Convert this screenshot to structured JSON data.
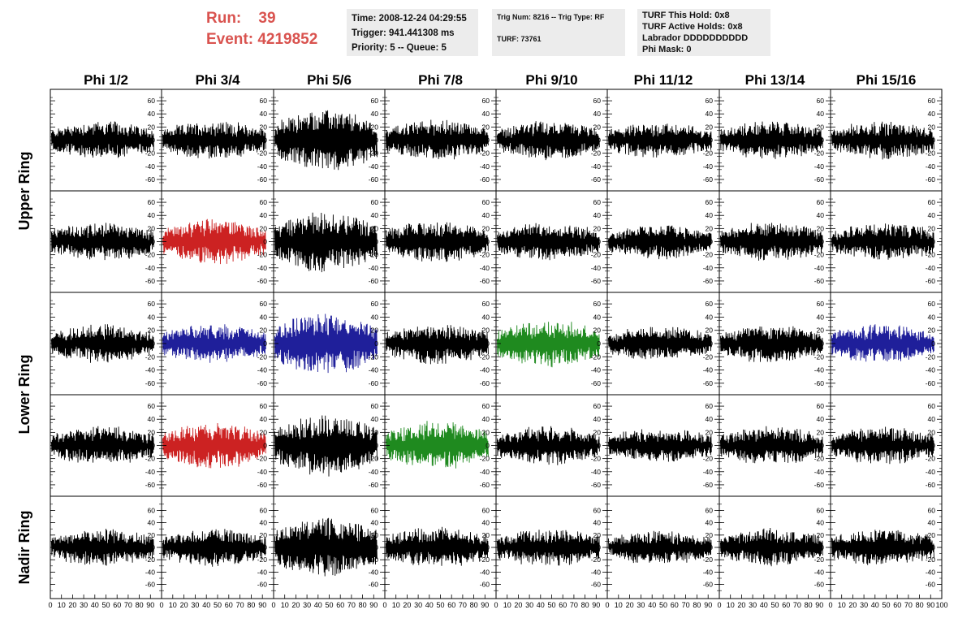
{
  "header": {
    "run_line": "Run:    39",
    "event_line": "Event: 4219852",
    "box1": [
      "Time: 2008-12-24 04:29:55",
      "Trigger: 941.441308 ms",
      "Priority: 5 -- Queue: 5"
    ],
    "box2": [
      "Trig Num: 8216 -- Trig Type: RF",
      "TURF: 73761"
    ],
    "box3": [
      "TURF This Hold: 0x8",
      "TURF Active Holds: 0x8",
      "Labrador DDDDDDDDDD",
      "Phi Mask: 0"
    ],
    "colors": {
      "run_text": "#d9534f",
      "box_bg": "#ececec"
    }
  },
  "chart_data": {
    "type": "line",
    "columns": [
      "Phi 1/2",
      "Phi 3/4",
      "Phi 5/6",
      "Phi 7/8",
      "Phi 9/10",
      "Phi 11/12",
      "Phi 13/14",
      "Phi 15/16"
    ],
    "ring_labels": [
      "Upper Ring",
      "Lower Ring",
      "Nadir Ring"
    ],
    "rows": 5,
    "xlim": [
      0,
      100
    ],
    "x_ticks": [
      0,
      10,
      20,
      30,
      40,
      50,
      60,
      70,
      80,
      90,
      100
    ],
    "x_tick_labels_bottom": [
      "0",
      "10",
      "20",
      "30",
      "40",
      "50",
      "60",
      "70",
      "80",
      "90",
      "100"
    ],
    "ylim_rows_1_4": [
      -70,
      70
    ],
    "ylim_row_5": [
      -75,
      75
    ],
    "y_tick_labels_rows_1_4": [
      "60",
      "40",
      "20",
      "0",
      "-20",
      "-40",
      "-60"
    ],
    "y_tick_labels_row_5": [
      "60",
      "40",
      "20",
      "0",
      "-20",
      "-40",
      "-60"
    ],
    "trace_colors": {
      "default": "#000000",
      "red": "#cc2222",
      "blue": "#1f1f9a",
      "green": "#1f8a1f"
    },
    "colored_panels": [
      {
        "row": 2,
        "col": 2,
        "color": "red"
      },
      {
        "row": 3,
        "col": 2,
        "color": "blue"
      },
      {
        "row": 3,
        "col": 3,
        "color": "blue"
      },
      {
        "row": 3,
        "col": 5,
        "color": "green"
      },
      {
        "row": 3,
        "col": 8,
        "color": "blue"
      },
      {
        "row": 4,
        "col": 2,
        "color": "red"
      },
      {
        "row": 4,
        "col": 4,
        "color": "green"
      }
    ],
    "approx_amplitude_by_column": [
      28,
      28,
      45,
      30,
      28,
      25,
      28,
      28
    ],
    "samples_per_trace": 260
  }
}
